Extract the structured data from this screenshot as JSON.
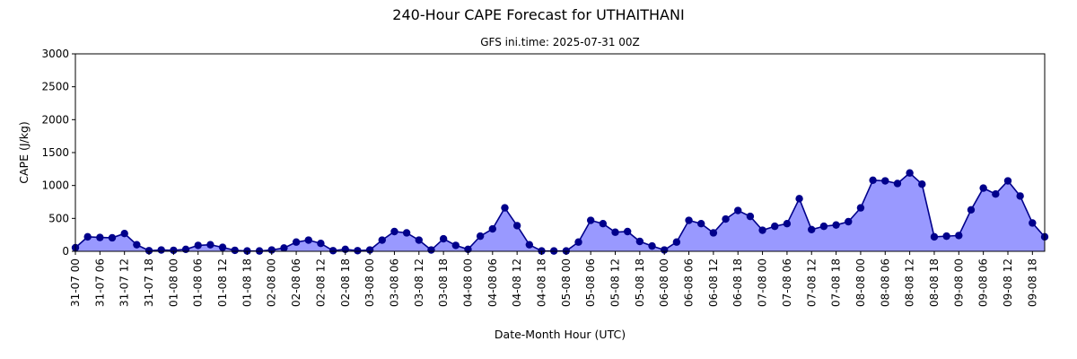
{
  "chart_data": {
    "type": "area",
    "title": "240-Hour CAPE Forecast for UTHAITHANI",
    "subtitle": "GFS ini.time: 2025-07-31 00Z",
    "xlabel": "Date-Month Hour (UTC)",
    "ylabel": "CAPE (J/kg)",
    "ylim": [
      0,
      3000
    ],
    "yticks": [
      0,
      500,
      1000,
      1500,
      2000,
      2500,
      3000
    ],
    "grid": false,
    "x_tick_labels": [
      "31-07 00",
      "31-07 06",
      "31-07 12",
      "31-07 18",
      "01-08 00",
      "01-08 06",
      "01-08 12",
      "01-08 18",
      "02-08 00",
      "02-08 06",
      "02-08 12",
      "02-08 18",
      "03-08 00",
      "03-08 06",
      "03-08 12",
      "03-08 18",
      "04-08 00",
      "04-08 06",
      "04-08 12",
      "04-08 18",
      "05-08 00",
      "05-08 06",
      "05-08 12",
      "05-08 18",
      "06-08 00",
      "06-08 06",
      "06-08 12",
      "06-08 18",
      "07-08 00",
      "07-08 06",
      "07-08 12",
      "07-08 18",
      "08-08 00",
      "08-08 06",
      "08-08 12",
      "08-08 18",
      "09-08 00",
      "09-08 06",
      "09-08 12",
      "09-08 18"
    ],
    "x_step_hours": 3,
    "colors": {
      "line": "#00008b",
      "fill": "#9999ff",
      "marker": "#00008b"
    },
    "values": [
      55,
      220,
      210,
      205,
      270,
      100,
      10,
      20,
      15,
      30,
      90,
      100,
      60,
      15,
      5,
      5,
      20,
      50,
      140,
      170,
      120,
      10,
      30,
      10,
      20,
      170,
      300,
      280,
      170,
      20,
      190,
      90,
      30,
      230,
      340,
      660,
      390,
      100,
      5,
      5,
      5,
      140,
      470,
      420,
      290,
      300,
      150,
      80,
      20,
      140,
      470,
      420,
      280,
      490,
      620,
      530,
      320,
      380,
      420,
      800,
      330,
      380,
      400,
      450,
      660,
      1080,
      1070,
      1030,
      1190,
      1020,
      220,
      230,
      240,
      630,
      960,
      870,
      1070,
      840,
      430,
      220
    ]
  }
}
